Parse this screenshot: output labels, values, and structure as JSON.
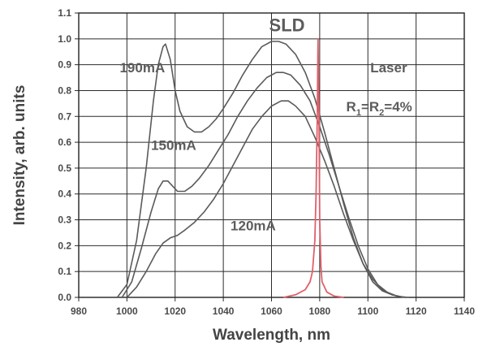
{
  "chart_data": {
    "type": "line",
    "title": "SLD",
    "xlabel": "Wavelength, nm",
    "ylabel": "Intensity, arb. units",
    "xlim": [
      980,
      1140
    ],
    "ylim": [
      0.0,
      1.1
    ],
    "x_ticks": [
      "980",
      "1000",
      "1020",
      "1040",
      "1060",
      "1080",
      "1100",
      "1120",
      "1140"
    ],
    "y_ticks": [
      "0.0",
      "0.1",
      "0.2",
      "0.3",
      "0.4",
      "0.5",
      "0.6",
      "0.7",
      "0.8",
      "0.9",
      "1.0",
      "1.1"
    ],
    "grid": true,
    "series": [
      {
        "name": "190mA",
        "color": "#5a5a5a",
        "x": [
          996,
          1000,
          1004,
          1008,
          1011,
          1013,
          1015,
          1016,
          1018,
          1020,
          1022,
          1025,
          1028,
          1031,
          1034,
          1037,
          1040,
          1044,
          1048,
          1052,
          1056,
          1060,
          1063,
          1066,
          1070,
          1074,
          1078,
          1082,
          1086,
          1090,
          1094,
          1098,
          1102,
          1106,
          1110,
          1114,
          1116
        ],
        "y": [
          0.0,
          0.05,
          0.22,
          0.5,
          0.76,
          0.9,
          0.97,
          0.98,
          0.92,
          0.8,
          0.72,
          0.66,
          0.64,
          0.64,
          0.66,
          0.69,
          0.73,
          0.79,
          0.86,
          0.92,
          0.97,
          0.99,
          0.99,
          0.98,
          0.94,
          0.87,
          0.77,
          0.64,
          0.5,
          0.36,
          0.23,
          0.13,
          0.06,
          0.025,
          0.01,
          0.002,
          0.0
        ]
      },
      {
        "name": "150mA",
        "color": "#5a5a5a",
        "x": [
          998,
          1002,
          1006,
          1010,
          1013,
          1015,
          1017,
          1019,
          1021,
          1024,
          1027,
          1030,
          1034,
          1038,
          1042,
          1046,
          1050,
          1054,
          1058,
          1062,
          1065,
          1068,
          1072,
          1076,
          1080,
          1084,
          1088,
          1092,
          1096,
          1100,
          1104,
          1108,
          1112,
          1116
        ],
        "y": [
          0.0,
          0.06,
          0.19,
          0.33,
          0.42,
          0.45,
          0.45,
          0.43,
          0.41,
          0.41,
          0.43,
          0.46,
          0.51,
          0.57,
          0.63,
          0.7,
          0.76,
          0.81,
          0.85,
          0.87,
          0.87,
          0.86,
          0.82,
          0.76,
          0.66,
          0.55,
          0.43,
          0.31,
          0.2,
          0.11,
          0.05,
          0.02,
          0.005,
          0.0
        ]
      },
      {
        "name": "120mA",
        "color": "#5a5a5a",
        "x": [
          1000,
          1004,
          1008,
          1012,
          1015,
          1018,
          1021,
          1024,
          1028,
          1032,
          1036,
          1040,
          1044,
          1048,
          1052,
          1056,
          1060,
          1064,
          1067,
          1070,
          1074,
          1078,
          1082,
          1086,
          1090,
          1094,
          1098,
          1102,
          1106,
          1110,
          1114,
          1117
        ],
        "y": [
          0.0,
          0.04,
          0.1,
          0.17,
          0.21,
          0.23,
          0.24,
          0.26,
          0.29,
          0.33,
          0.38,
          0.44,
          0.51,
          0.58,
          0.65,
          0.7,
          0.74,
          0.76,
          0.76,
          0.74,
          0.7,
          0.62,
          0.53,
          0.43,
          0.32,
          0.22,
          0.13,
          0.07,
          0.03,
          0.01,
          0.002,
          0.0
        ]
      },
      {
        "name": "Laser",
        "color": "#e0606a",
        "x": [
          1065,
          1070,
          1074,
          1076,
          1077,
          1078,
          1078.5,
          1079,
          1079.3,
          1079.7,
          1080,
          1080.5,
          1081,
          1083,
          1086,
          1090
        ],
        "y": [
          0.0,
          0.01,
          0.03,
          0.06,
          0.1,
          0.22,
          0.4,
          0.7,
          1.0,
          0.7,
          0.3,
          0.12,
          0.06,
          0.02,
          0.005,
          0.0
        ]
      }
    ],
    "annotations": [
      {
        "text": "SLD",
        "x": 1059,
        "y": 1.03,
        "size": 22
      },
      {
        "text": "190mA",
        "x": 997,
        "y": 0.87,
        "size": 17
      },
      {
        "text": "150mA",
        "x": 1010,
        "y": 0.57,
        "size": 17
      },
      {
        "text": "120mA",
        "x": 1043,
        "y": 0.26,
        "size": 17
      },
      {
        "text": "Laser",
        "x": 1101,
        "y": 0.87,
        "size": 17
      }
    ],
    "laser_condition": {
      "r1": "R",
      "sub1": "1",
      "eq": "=R",
      "sub2": "2",
      "value": "=4%"
    }
  }
}
